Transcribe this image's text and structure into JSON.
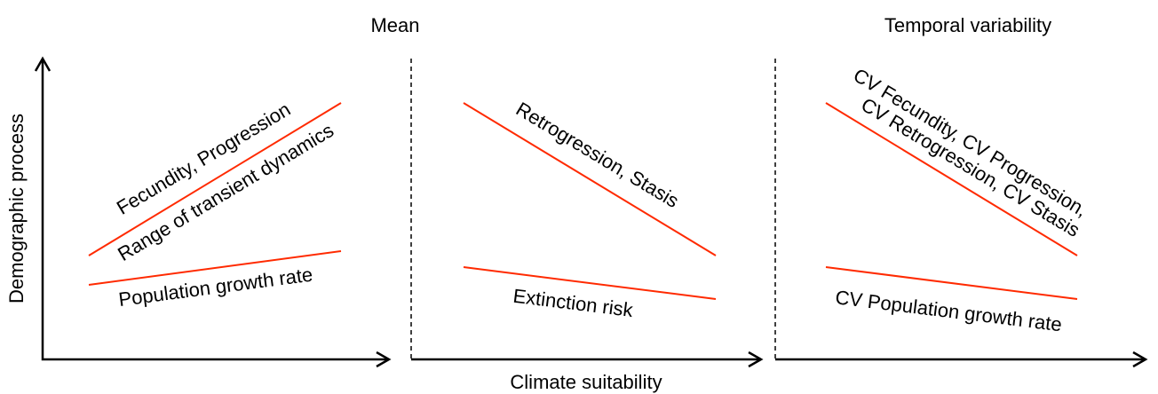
{
  "headers": {
    "mean": "Mean",
    "temporal": "Temporal variability"
  },
  "axes": {
    "y_label": "Demographic process",
    "x_label": "Climate suitability"
  },
  "panels": [
    {
      "labels": [
        "Fecundity, Progression",
        "Range of transient dynamics",
        "Population growth rate"
      ]
    },
    {
      "labels": [
        "Retrogression, Stasis",
        "Extinction risk"
      ]
    },
    {
      "labels": [
        "CV Fecundity, CV Progression,",
        "CV Retrogression, CV Stasis",
        "CV Population growth rate"
      ]
    }
  ]
}
